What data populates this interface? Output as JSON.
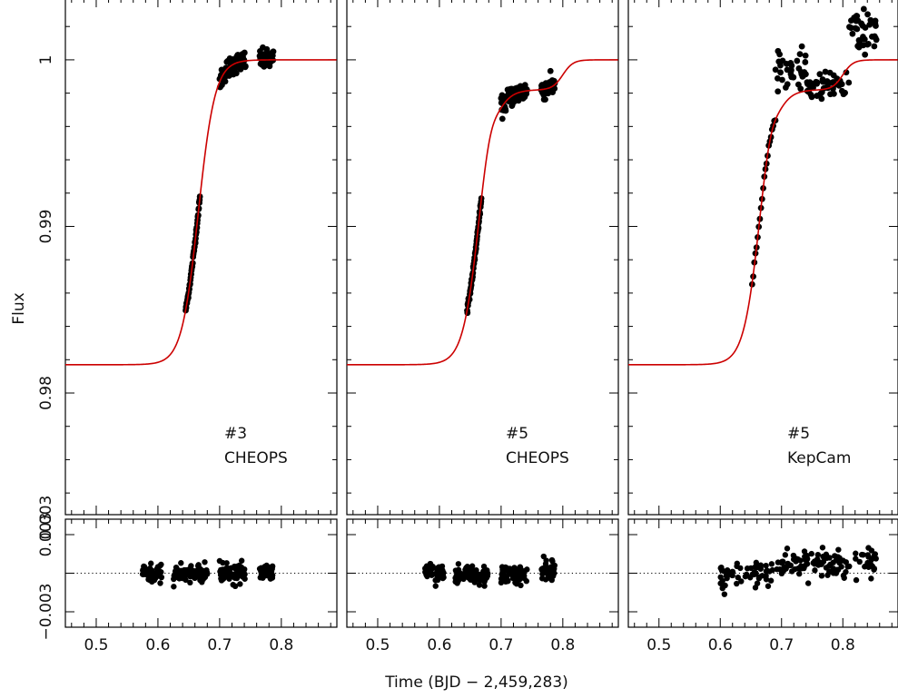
{
  "chart_data": {
    "type": "scatter",
    "xlabel": "Time  (BJD − 2,459,283)",
    "ylabel": "Flux",
    "xlim": [
      0.45,
      0.89
    ],
    "flux_ylim": [
      0.9727,
      1.0037
    ],
    "resid_ylim": [
      -0.0042,
      0.0042
    ],
    "x_ticks": [
      "0.5",
      "0.6",
      "0.7",
      "0.8"
    ],
    "flux_ticks": [
      "0.98",
      "0.99",
      "1"
    ],
    "resid_ticks": [
      "−0.003",
      "0.003"
    ],
    "model_color": "#cc0000",
    "point_color": "#000000",
    "panels": [
      {
        "id": "p1",
        "label_number": "#3",
        "label_instrument": "CHEOPS",
        "model": {
          "t_mid": 0.6655,
          "depth": 0.0183,
          "slope": 74,
          "bump": 0
        },
        "clusters": [
          {
            "x": [
              0.645,
              0.668
            ],
            "y_mode": "model",
            "scatter": 0.0001,
            "n": 55
          },
          {
            "x": [
              0.7,
              0.742
            ],
            "y_mode": "model",
            "scatter": 0.0003,
            "n": 80
          },
          {
            "x": [
              0.765,
              0.787
            ],
            "y_mode": "model",
            "scatter": 0.0003,
            "n": 45
          }
        ],
        "residuals": [
          {
            "x": [
              0.575,
              0.607
            ],
            "center": 0.0,
            "scatter": 0.0007,
            "n": 45
          },
          {
            "x": [
              0.625,
              0.68
            ],
            "center": 0.0,
            "scatter": 0.0006,
            "n": 90
          },
          {
            "x": [
              0.7,
              0.742
            ],
            "center": 0.0,
            "scatter": 0.0007,
            "n": 80
          },
          {
            "x": [
              0.765,
              0.787
            ],
            "center": 0.0,
            "scatter": 0.0007,
            "n": 45
          }
        ]
      },
      {
        "id": "p2",
        "label_number": "#5",
        "label_instrument": "CHEOPS",
        "model": {
          "t_mid": 0.6655,
          "depth": 0.0183,
          "slope": 74,
          "bump": 0.0018
        },
        "clusters": [
          {
            "x": [
              0.645,
              0.668
            ],
            "y_mode": "model",
            "scatter": 0.0001,
            "n": 55
          },
          {
            "x": [
              0.7,
              0.742
            ],
            "y_mode": "model",
            "scatter": 0.0003,
            "n": 80
          },
          {
            "x": [
              0.765,
              0.787
            ],
            "y_mode": "model",
            "scatter": 0.0003,
            "n": 45
          }
        ],
        "residuals": [
          {
            "x": [
              0.575,
              0.607
            ],
            "center": 0.0,
            "scatter": 0.0007,
            "n": 45
          },
          {
            "x": [
              0.625,
              0.68
            ],
            "center": -0.0002,
            "scatter": 0.0006,
            "n": 90
          },
          {
            "x": [
              0.7,
              0.742
            ],
            "center": -0.0001,
            "scatter": 0.0007,
            "n": 80
          },
          {
            "x": [
              0.765,
              0.787
            ],
            "center": 0.0002,
            "scatter": 0.0007,
            "n": 45
          }
        ]
      },
      {
        "id": "p3",
        "label_number": "#5",
        "label_instrument": "KepCam",
        "model": {
          "t_mid": 0.6655,
          "depth": 0.0183,
          "slope": 74,
          "bump": 0.0018
        },
        "clusters": [
          {
            "x": [
              0.652,
              0.69
            ],
            "y_mode": "model",
            "scatter": 0.0001,
            "n": 22
          },
          {
            "x": [
              0.69,
              0.74
            ],
            "y_mode": "fixed",
            "center": 0.99935,
            "scatter": 0.0006,
            "n": 38
          },
          {
            "x": [
              0.74,
              0.81
            ],
            "y_mode": "fixed",
            "center": 0.99845,
            "scatter": 0.0005,
            "n": 45
          },
          {
            "x": [
              0.81,
              0.855
            ],
            "y_mode": "fixed",
            "center": 1.0018,
            "scatter": 0.0007,
            "n": 38
          }
        ],
        "residuals": [
          {
            "x": [
              0.6,
              0.7
            ],
            "center": 0.0001,
            "scatter": 0.0011,
            "n": 60
          },
          {
            "x": [
              0.7,
              0.78
            ],
            "center": 0.0006,
            "scatter": 0.0011,
            "n": 60
          },
          {
            "x": [
              0.78,
              0.855
            ],
            "center": 0.0002,
            "scatter": 0.0013,
            "n": 45
          }
        ]
      }
    ]
  }
}
